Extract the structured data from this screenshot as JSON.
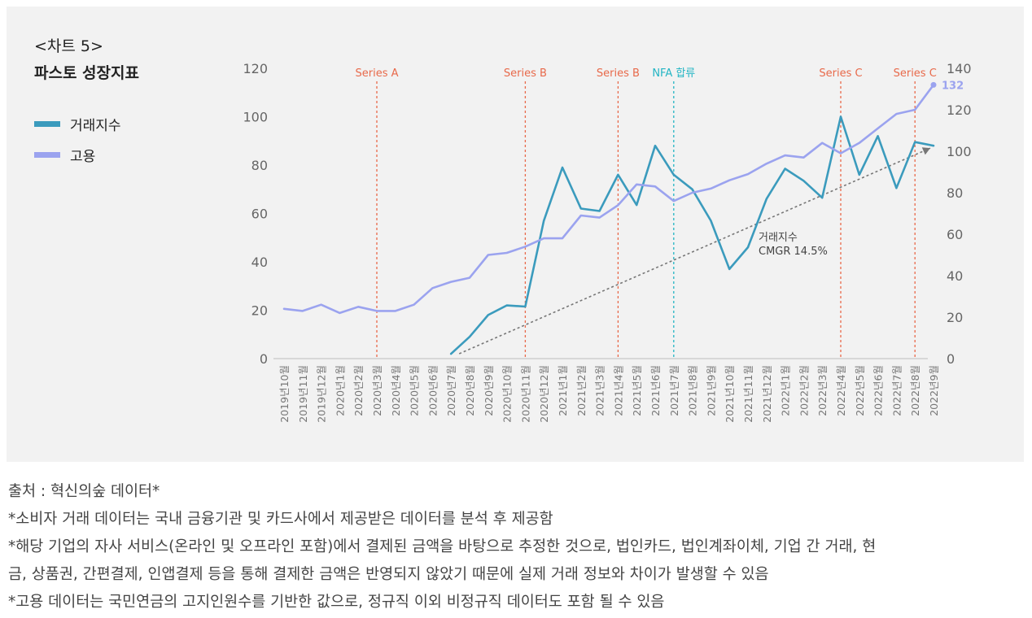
{
  "title_line1": "<차트 5>",
  "title_line2": "파스토 성장지표",
  "legend": [
    {
      "label": "거래지수",
      "color": "#3b9bbd"
    },
    {
      "label": "고용",
      "color": "#9ba3ef"
    }
  ],
  "chart_data": {
    "type": "line",
    "x": [
      "2019년10월",
      "2019년11월",
      "2019년12월",
      "2020년1월",
      "2020년2월",
      "2020년3월",
      "2020년4월",
      "2020년5월",
      "2020년6월",
      "2020년7월",
      "2020년8월",
      "2020년9월",
      "2020년10월",
      "2020년11월",
      "2020년12월",
      "2021년1월",
      "2021년2월",
      "2021년3월",
      "2021년4월",
      "2021년5월",
      "2021년6월",
      "2021년7월",
      "2021년8월",
      "2021년9월",
      "2021년10월",
      "2021년11월",
      "2021년12월",
      "2022년1월",
      "2022년2월",
      "2022년3월",
      "2022년4월",
      "2022년5월",
      "2022년6월",
      "2022년7월",
      "2022년8월",
      "2022년9월"
    ],
    "series": [
      {
        "name": "거래지수",
        "axis": "left",
        "color": "#3b9bbd",
        "values": [
          null,
          null,
          null,
          null,
          null,
          null,
          null,
          null,
          null,
          2,
          9,
          18,
          22,
          21.5,
          57,
          79,
          62,
          61,
          76,
          63.5,
          88,
          76,
          70,
          57,
          37,
          46,
          66,
          78.5,
          73.5,
          66.5,
          100,
          76,
          92,
          70.5,
          89.5,
          88
        ]
      },
      {
        "name": "고용",
        "axis": "right",
        "color": "#9ba3ef",
        "values": [
          24,
          23,
          26,
          22,
          25,
          23,
          23,
          26,
          34,
          37,
          39,
          50,
          51,
          54,
          58,
          58,
          69,
          68,
          74,
          84,
          83,
          76,
          80,
          82,
          86,
          89,
          94,
          98,
          97,
          104,
          99,
          104,
          111,
          118,
          120,
          132
        ]
      }
    ],
    "left_axis": {
      "min": 0,
      "max": 120,
      "ticks": [
        0,
        20,
        40,
        60,
        80,
        100,
        120
      ]
    },
    "right_axis": {
      "min": 0,
      "max": 140,
      "ticks": [
        0,
        20,
        40,
        60,
        80,
        100,
        120,
        140
      ]
    },
    "events": [
      {
        "label": "Series A",
        "month": "2020년3월",
        "color": "#e8694a"
      },
      {
        "label": "Series B",
        "month": "2020년11월",
        "color": "#e8694a"
      },
      {
        "label": "Series B",
        "month": "2021년4월",
        "color": "#e8694a"
      },
      {
        "label": "NFA 합류",
        "month": "2021년7월",
        "color": "#23b5c4"
      },
      {
        "label": "Series C",
        "month": "2022년4월",
        "color": "#e8694a"
      },
      {
        "label": "Series C",
        "month": "2022년8월",
        "color": "#e8694a"
      }
    ],
    "end_label": "132",
    "trend": {
      "from_month": "2020년7월",
      "from_value": 0,
      "to_month": "2022년9월",
      "to_value": 87
    },
    "annotation_line1": "거래지수",
    "annotation_line2": "CMGR 14.5%"
  },
  "footnotes": [
    "출처 : 혁신의숲 데이터*",
    "*소비자 거래 데이터는 국내 금융기관 및 카드사에서 제공받은 데이터를 분석 후 제공함",
    "*해당 기업의 자사 서비스(온라인 및 오프라인 포함)에서 결제된 금액을 바탕으로 추정한 것으로, 법인카드, 법인계좌이체, 기업 간 거래, 현",
    "금, 상품권, 간편결제, 인앱결제 등을 통해 결제한 금액은 반영되지 않았기 때문에 실제 거래 정보와 차이가 발생할 수 있음",
    "*고용 데이터는 국민연금의 고지인원수를 기반한 값으로, 정규직 이외 비정규직 데이터도 포함 될 수 있음"
  ]
}
